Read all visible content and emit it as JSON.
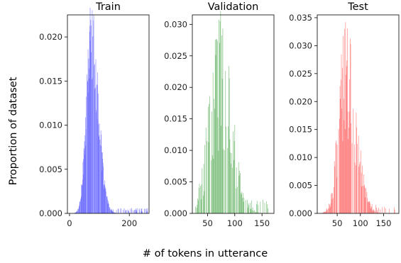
{
  "figure": {
    "xlabel": "# of tokens in utterance",
    "ylabel": "Proportion of dataset"
  },
  "chart_data": [
    {
      "type": "bar",
      "subtype": "histogram",
      "title": "Train",
      "color": "#6666ff",
      "xlim": [
        -7,
        266
      ],
      "ylim": [
        0,
        0.0225
      ],
      "xticks": [
        0,
        200
      ],
      "yticks": [
        0.0,
        0.005,
        0.01,
        0.015,
        0.02
      ],
      "y_tick_decimals": 3,
      "bin_width": 1,
      "peak_x": 72,
      "peak_y": 0.0213,
      "profile": {
        "start": 8,
        "end": 262,
        "mode": 72,
        "left_spread": 16,
        "right_spread": 24,
        "peak": 0.0195,
        "jitter": 0.25,
        "tail": 0.0004,
        "tail_start": 140
      }
    },
    {
      "type": "bar",
      "subtype": "histogram",
      "title": "Validation",
      "color": "#5aae5a",
      "xlim": [
        22,
        172
      ],
      "ylim": [
        0,
        0.0315
      ],
      "xticks": [
        50,
        100,
        150
      ],
      "yticks": [
        0.0,
        0.005,
        0.01,
        0.015,
        0.02,
        0.025,
        0.03
      ],
      "y_tick_decimals": 3,
      "bin_width": 1,
      "peak_x": 73,
      "peak_y": 0.0305,
      "profile": {
        "start": 28,
        "end": 168,
        "mode": 72,
        "left_spread": 19,
        "right_spread": 22,
        "peak": 0.021,
        "jitter": 0.55,
        "tail": 0.0015,
        "tail_start": 112
      }
    },
    {
      "type": "bar",
      "subtype": "histogram",
      "title": "Test",
      "color": "#ff6060",
      "xlim": [
        7,
        183
      ],
      "ylim": [
        0,
        0.0355
      ],
      "xticks": [
        50,
        100,
        150
      ],
      "yticks": [
        0.0,
        0.005,
        0.01,
        0.015,
        0.02,
        0.025,
        0.03,
        0.035
      ],
      "y_tick_decimals": 3,
      "bin_width": 1,
      "peak_x": 68,
      "peak_y": 0.0342,
      "profile": {
        "start": 18,
        "end": 175,
        "mode": 68,
        "left_spread": 15,
        "right_spread": 22,
        "peak": 0.024,
        "jitter": 0.45,
        "tail": 0.0012,
        "tail_start": 118
      }
    }
  ]
}
